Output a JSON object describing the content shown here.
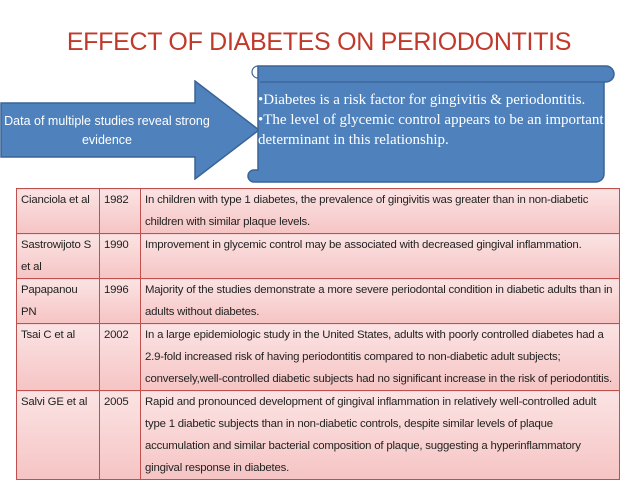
{
  "title": "EFFECT OF DIABETES ON PERIODONTITIS",
  "arrow_text": "Data of multiple studies reveal strong evidence",
  "scroll_points": [
    "•Diabetes is a risk factor for gingivitis & periodontitis.",
    "•The level of glycemic control appears to be an important determinant in this relationship."
  ],
  "studies": [
    {
      "author": "Cianciola et al",
      "year": "1982",
      "finding": "In children with type 1 diabetes, the prevalence of gingivitis was greater than in non-diabetic children with similar plaque levels."
    },
    {
      "author": "Sastrowijoto S et al",
      "year": "1990",
      "finding": "Improvement in glycemic control may be associated with decreased gingival inflammation."
    },
    {
      "author": "Papapanou PN",
      "year": "1996",
      "finding": "Majority of the studies demonstrate a more severe periodontal condition in diabetic adults than in adults without diabetes."
    },
    {
      "author": "Tsai C et al",
      "year": "2002",
      "finding": "In a large epidemiologic study in the United States, adults with poorly controlled diabetes had a 2.9-fold increased risk of having periodontitis compared to non-diabetic adult subjects; conversely,well-controlled diabetic subjects had no significant increase in the risk of periodontitis."
    },
    {
      "author": "Salvi GE et al",
      "year": "2005",
      "finding": "Rapid and pronounced development of gingival inflammation in relatively well-controlled adult type 1 diabetic subjects than in non-diabetic controls, despite similar levels of plaque accumulation and similar bacterial composition of plaque, suggesting a hyperinflammatory gingival response in diabetes."
    }
  ]
}
